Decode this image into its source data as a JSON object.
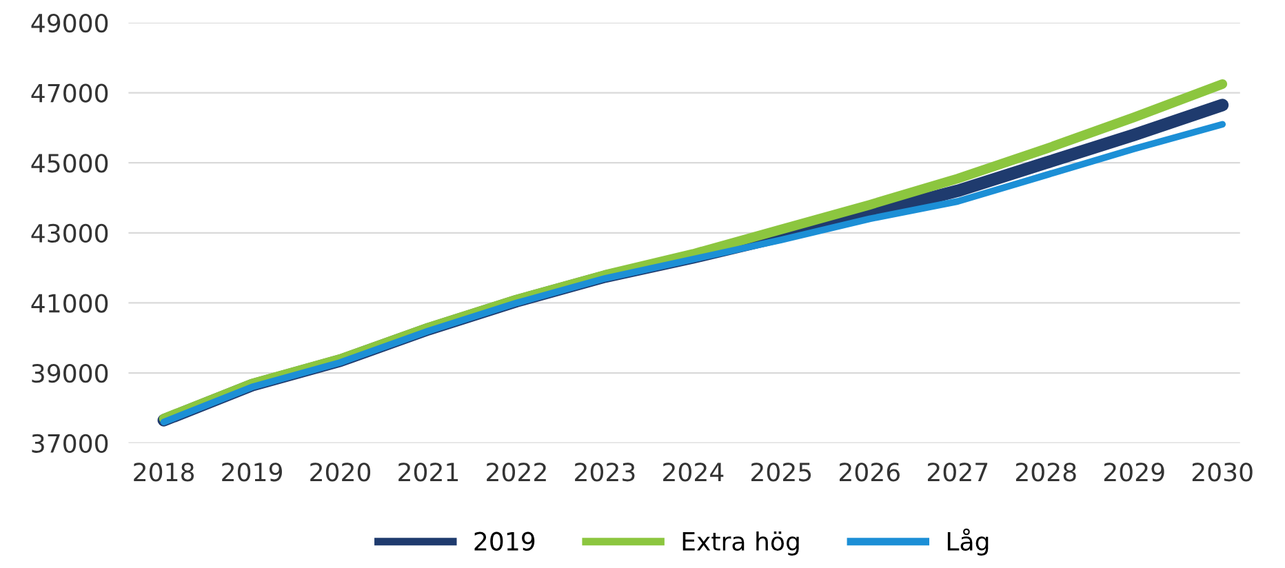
{
  "chart_data": {
    "type": "line",
    "x": [
      2018,
      2019,
      2020,
      2021,
      2022,
      2023,
      2024,
      2025,
      2026,
      2027,
      2028,
      2029,
      2030
    ],
    "series": [
      {
        "name": "2019",
        "color": "#1f3b6e",
        "values": [
          37650,
          38650,
          39350,
          40250,
          41050,
          41750,
          42300,
          42900,
          43550,
          44200,
          45000,
          45800,
          46650
        ]
      },
      {
        "name": "Extra hög",
        "color": "#8cc63f",
        "values": [
          37700,
          38700,
          39400,
          40300,
          41100,
          41800,
          42400,
          43100,
          43800,
          44550,
          45400,
          46300,
          47250
        ]
      },
      {
        "name": "Låg",
        "color": "#1c8fd6",
        "values": [
          37600,
          38600,
          39300,
          40200,
          41000,
          41700,
          42250,
          42800,
          43400,
          43900,
          44650,
          45400,
          46100
        ]
      }
    ],
    "xlim": [
      2017.6,
      2030.2
    ],
    "xticks": [
      2018,
      2019,
      2020,
      2021,
      2022,
      2023,
      2024,
      2025,
      2026,
      2027,
      2028,
      2029,
      2030
    ],
    "ylim": [
      37000,
      49000
    ],
    "yticks": [
      37000,
      39000,
      41000,
      43000,
      45000,
      47000,
      49000
    ],
    "grid": "y",
    "legend": "bottom",
    "marker": "none",
    "line_style": "solid"
  }
}
